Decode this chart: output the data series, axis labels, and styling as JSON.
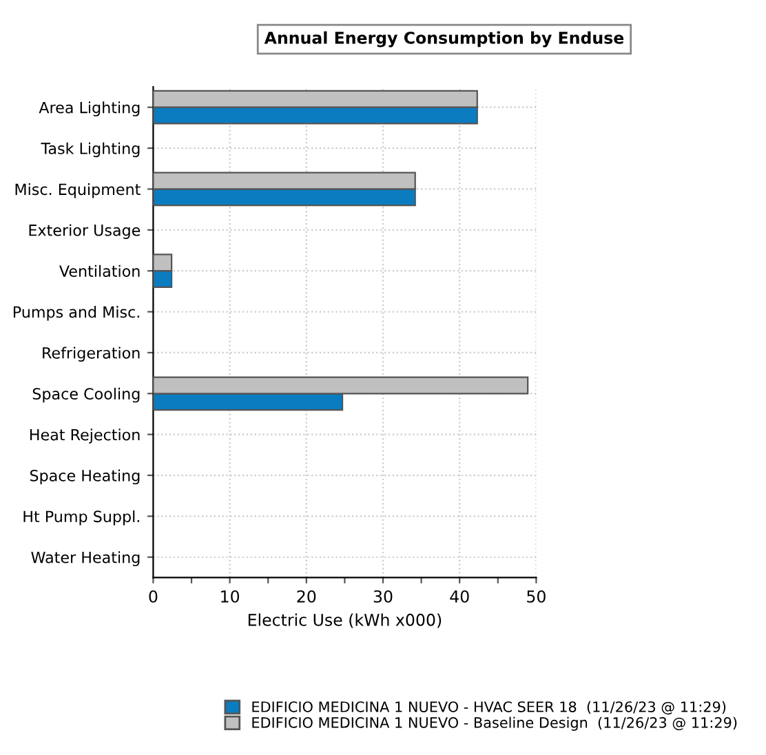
{
  "chart_data": {
    "type": "bar",
    "orientation": "horizontal",
    "title": "Annual Energy Consumption by Enduse",
    "xlabel": "Electric Use (kWh x000)",
    "categories": [
      "Area Lighting",
      "Task Lighting",
      "Misc. Equipment",
      "Exterior Usage",
      "Ventilation",
      "Pumps and Misc.",
      "Refrigeration",
      "Space Cooling",
      "Heat Rejection",
      "Space Heating",
      "Ht Pump Suppl.",
      "Water Heating"
    ],
    "series": [
      {
        "name": "EDIFICIO MEDICINA 1 NUEVO - HVAC SEER 18  (11/26/23 @ 11:29)",
        "color": "#0b7cc0",
        "values": [
          42.3,
          0,
          34.2,
          0,
          2.4,
          0,
          0,
          24.7,
          0,
          0,
          0,
          0
        ]
      },
      {
        "name": "EDIFICIO MEDICINA 1 NUEVO - Baseline Design  (11/26/23 @ 11:29)",
        "color": "#c0c0c0",
        "values": [
          42.3,
          0,
          34.2,
          0,
          2.4,
          0,
          0,
          48.9,
          0,
          0,
          0,
          0
        ]
      }
    ],
    "xlim": [
      0,
      50
    ],
    "xticks": [
      0,
      {
        "value": 5,
        "label": null
      },
      10,
      {
        "value": 15,
        "label": null
      },
      20,
      {
        "value": 25,
        "label": null
      },
      30,
      {
        "value": 35,
        "label": null
      },
      40,
      {
        "value": 45,
        "label": null
      },
      50
    ],
    "grid": true,
    "line_style": "dotted",
    "legend": "bottom"
  }
}
